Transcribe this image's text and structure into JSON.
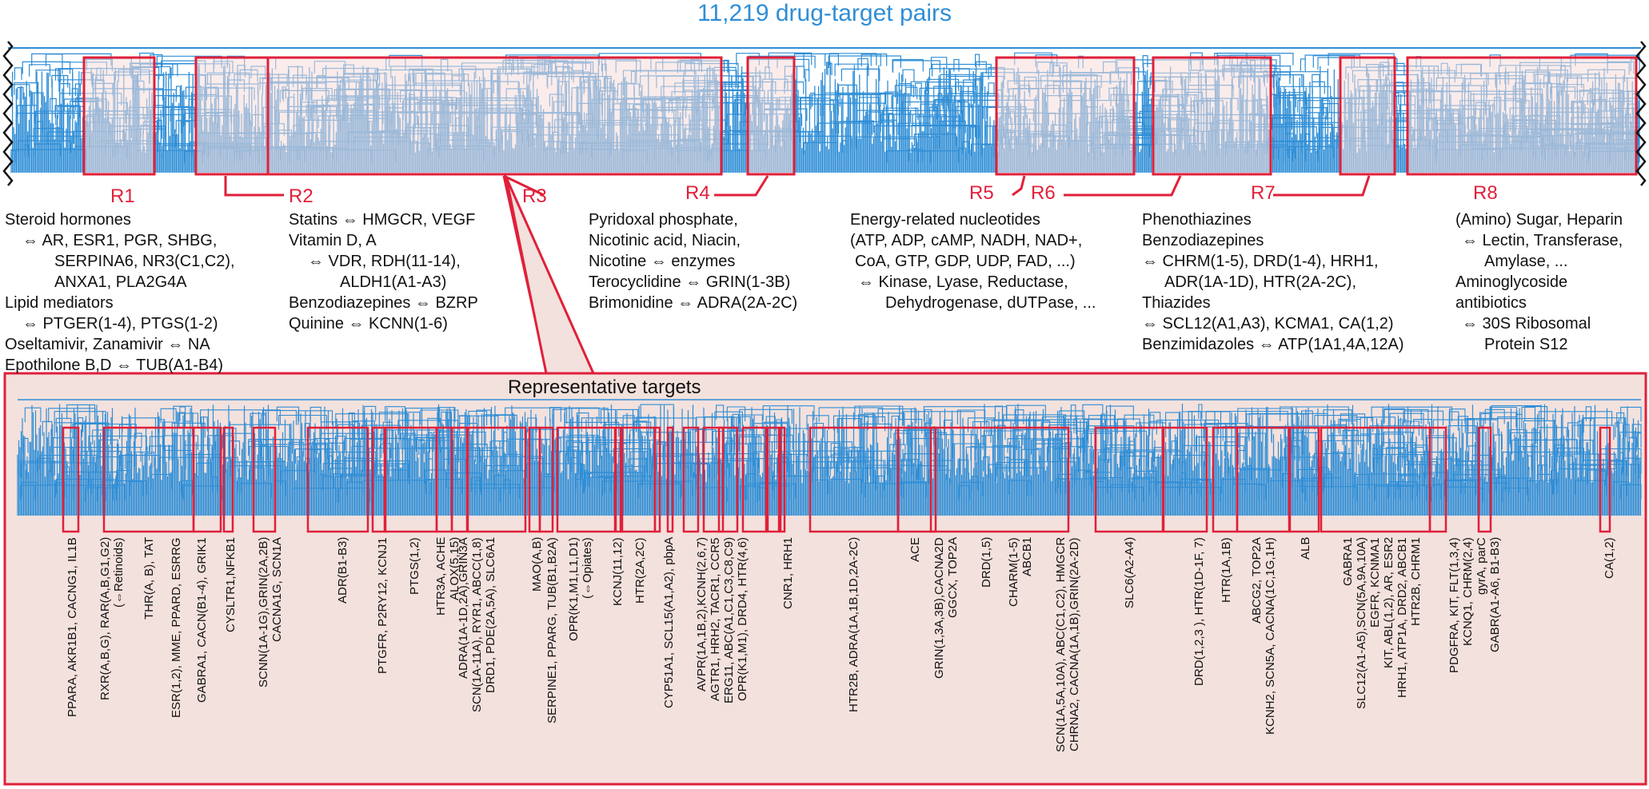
{
  "title": "11,219 drug-target pairs",
  "colors": {
    "tree": "#2f8ed6",
    "highlight": "#e0203a",
    "panel_bg": "#f3e1dd",
    "accent_text": "#2f6fc4"
  },
  "regions": [
    {
      "label": "R1",
      "annotation": [
        "Steroid hormones",
        "⇔  AR, ESR1, PGR, SHBG,",
        "SERPINA6, NR3(C1,C2),",
        "ANXA1, PLA2G4A",
        "Lipid mediators",
        "⇔  PTGER(1-4), PTGS(1-2)",
        "Oseltamivir, Zanamivir ⇔  NA",
        "Epothilone B,D ⇔ TUB(A1-B4)"
      ]
    },
    {
      "label": "R2",
      "annotation": [
        "Statins ⇔ HMGCR, VEGF",
        "Vitamin D, A",
        "⇔  VDR, RDH(11-14),",
        "ALDH1(A1-A3)",
        "Benzodiazepines ⇔ BZRP",
        "Quinine ⇔ KCNN(1-6)"
      ]
    },
    {
      "label": "R3",
      "annotation": []
    },
    {
      "label": "R4",
      "annotation": [
        "Pyridoxal phosphate,",
        "Nicotinic acid, Niacin,",
        "Nicotine ⇔ enzymes",
        "Terocyclidine ⇔ GRIN(1-3B)",
        "Brimonidine ⇔ ADRA(2A-2C)"
      ]
    },
    {
      "label": "R5",
      "annotation": []
    },
    {
      "label": "R6",
      "annotation": [
        "Energy-related nucleotides",
        "(ATP, ADP, cAMP, NADH, NAD+,",
        "CoA, GTP, GDP, UDP, FAD, ...)",
        "⇔  Kinase, Lyase, Reductase,",
        "Dehydrogenase, dUTPase, ..."
      ]
    },
    {
      "label": "R7",
      "annotation": [
        "Phenothiazines",
        "Benzodiazepines",
        "⇔ CHRM(1-5), DRD(1-4), HRH1,",
        "ADR(1A-1D), HTR(2A-2C),",
        "Thiazides",
        "⇔ SCL12(A1,A3), KCMA1, CA(1,2)",
        "Benzimidazoles ⇔ ATP(1A1,4A,12A)"
      ]
    },
    {
      "label": "R8",
      "annotation": [
        "(Amino) Sugar, Heparin",
        "⇔ Lectin, Transferase,",
        "Amylase, ...",
        "Aminoglycoside",
        "antibiotics",
        "⇔  30S Ribosomal",
        "Protein S12"
      ]
    }
  ],
  "detail_panel": {
    "title": "Representative targets",
    "targets": [
      {
        "lines": [
          "PPARA, AKR1B1, CACNG1, IL1B"
        ]
      },
      {
        "lines": [
          "RXR(A,B,G), RAR(A,B,G1,G2)"
        ],
        "note": "(⇔Retinoids)"
      },
      {
        "lines": [
          "THR(A, B), TAT"
        ]
      },
      {
        "lines": [
          "ESR(1,2), MME, PPARD, ESRRG"
        ]
      },
      {
        "lines": [
          "GABRA1, CACN(B1-4), GRIK1"
        ]
      },
      {
        "lines": [
          "CYSLTR1,NFKB1"
        ]
      },
      {
        "lines": [
          "SCNN(1A-1G),GRIN(2A,2B)",
          "CACNA1G, SCN1A"
        ]
      },
      {
        "lines": [
          "ADR(B1-B3)"
        ]
      },
      {
        "lines": [
          "PTGFR, P2RY12, KCNJ1"
        ]
      },
      {
        "lines": [
          "PTGS(1,2)"
        ]
      },
      {
        "lines": [
          "HTR3A, ACHE",
          "ALOX(5,15)"
        ]
      },
      {
        "lines": [
          "ADRA(1A-1D,2A),GRIN3A",
          "SCN(1A-11A), RYR1, ABCC(1,8)",
          "DRD1, PDE(2A,5A), SLC6A1"
        ]
      },
      {
        "lines": [
          "MAO(A,B)"
        ]
      },
      {
        "lines": [
          "SERPINE1, PPARG, TUB(B1,B2A)"
        ]
      },
      {
        "lines": [
          "OPR(K1,M1,L1,D1)"
        ],
        "note": "(⇔Opiates)"
      },
      {
        "lines": [
          "KCNJ(11,12)"
        ]
      },
      {
        "lines": [
          "HTR(2A,2C)"
        ]
      },
      {
        "lines": [
          "CYP51A1, SCL15(A1,A2), pbpA"
        ]
      },
      {
        "lines": [
          "AVPR(1A,1B,2),KCNH(2,6,7)",
          "AGTR1, HRH2, TACR1, CCR5",
          "ERG11, ABC(A1,C1,C3,C8,C9)",
          "OPR(K1,M1), DRD4, HTR(4,6)"
        ]
      },
      {
        "lines": [
          "CNR1, HRH1"
        ]
      },
      {
        "lines": [
          "HTR2B, ADRA(1A,1B,1D,2A-2C)"
        ]
      },
      {
        "lines": [
          "ACE"
        ]
      },
      {
        "lines": [
          "GRIN(1,3A,3B),CACNA2D",
          "GGCX, TOP2A"
        ]
      },
      {
        "lines": [
          "DRD(1,5)"
        ]
      },
      {
        "lines": [
          "CHARM(1-5)",
          "ABCB1"
        ]
      },
      {
        "lines": [
          "SCN(1A,5A,10A), ABC(C1,C2), HMGCR",
          "CHRNA2, CACNA(1A,1B),GRIN(2A-2D)"
        ]
      },
      {
        "lines": [
          "SLC6(A2-A4)"
        ]
      },
      {
        "lines": [
          "DRD(1,2,3 ), HTR(1D-1F, 7)"
        ]
      },
      {
        "lines": [
          "HTR(1A,1B)"
        ]
      },
      {
        "lines": [
          "ABCG2, TOP2A",
          "KCNH2, SCN5A, CACNA(1C,1G,1H)"
        ]
      },
      {
        "lines": [
          "ALB"
        ]
      },
      {
        "lines": [
          "GABRA1",
          "SLC12(A1-A5),SCN(5A,9A,10A)",
          "EGFR, KCNMA1",
          "KIT, ABL(1,2), AR, ESR2",
          "HRH1, ATP1A, DRD2, ABCB1",
          "HTR2B, CHRM1"
        ]
      },
      {
        "lines": [
          "PDGFRA, KIT, FLT(1,3,4)",
          "KCNQ1, CHRM(2,4)",
          "gyrA, parC",
          "GABR(A1-A6, B1-B3)"
        ]
      },
      {
        "lines": [
          "CA(1,2)"
        ]
      }
    ]
  }
}
